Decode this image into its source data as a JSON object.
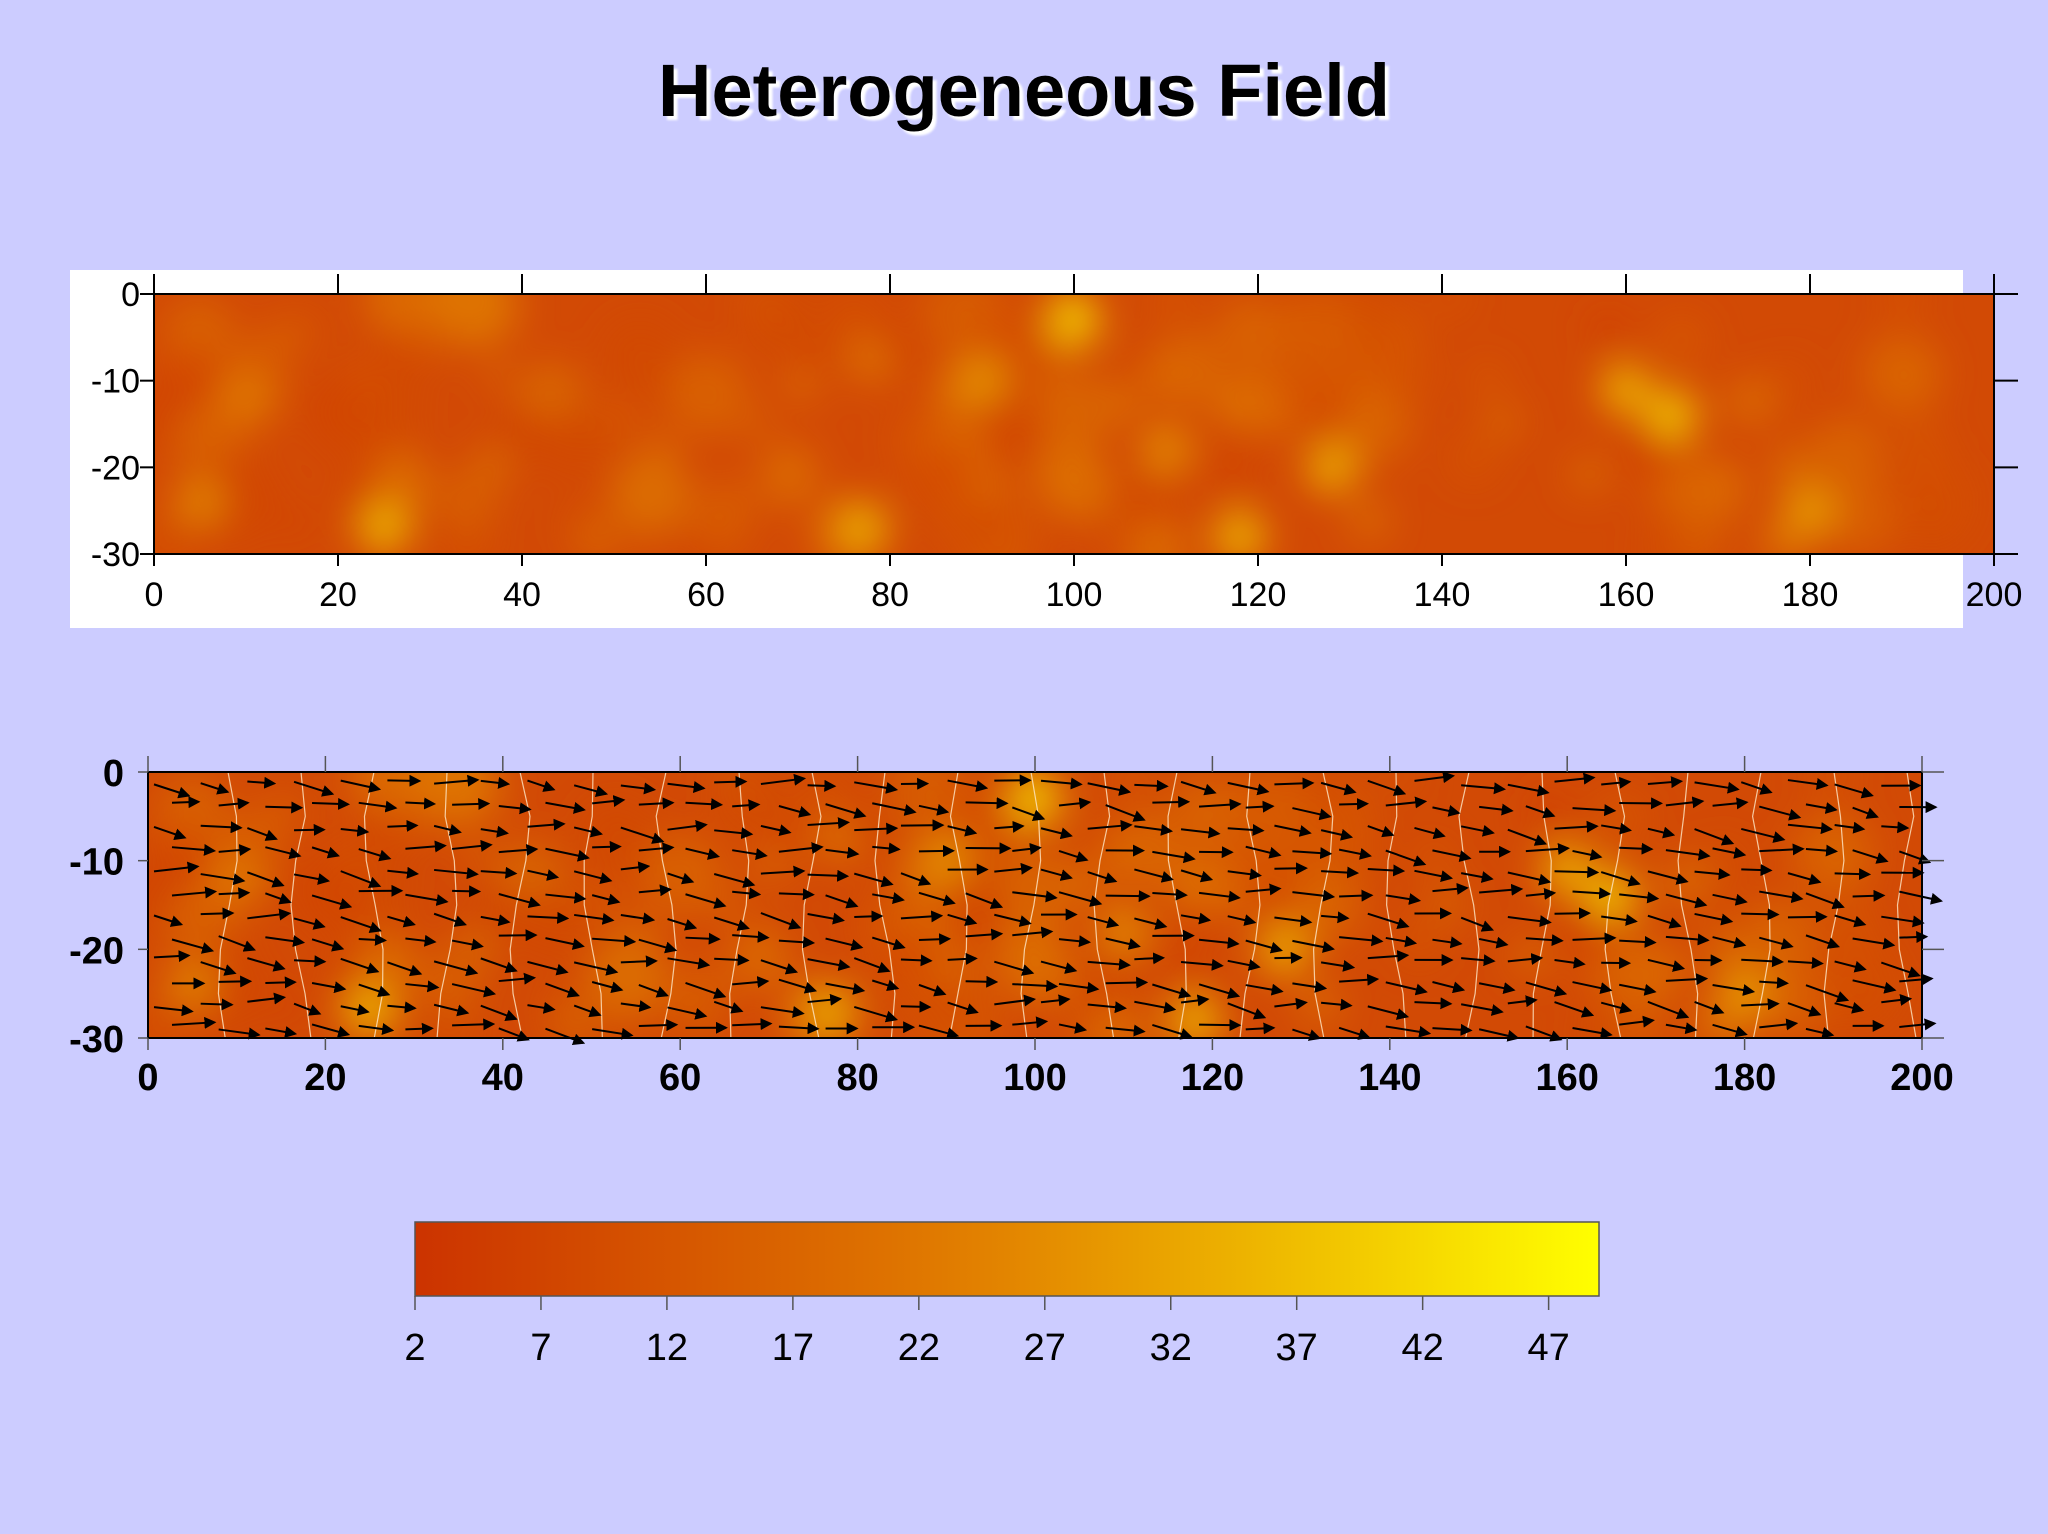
{
  "title": "Heterogeneous Field",
  "colors": {
    "background": "#ccccff",
    "field_low": "#cc3300",
    "field_mid": "#e07a00",
    "field_high": "#ffff00"
  },
  "chart_data": [
    {
      "type": "heatmap",
      "name": "hydraulic-conductivity-field",
      "title": "",
      "xlim": [
        0,
        200
      ],
      "ylim": [
        -30,
        0
      ],
      "x_ticks": [
        0,
        20,
        40,
        60,
        80,
        100,
        120,
        140,
        160,
        180,
        200
      ],
      "y_ticks": [
        0,
        -10,
        -20,
        -30
      ],
      "value_range": [
        2,
        49
      ],
      "highlights": [
        {
          "x": 100,
          "y": -3,
          "value": 40
        },
        {
          "x": 25,
          "y": -27,
          "value": 35
        },
        {
          "x": 77,
          "y": -27,
          "value": 33
        },
        {
          "x": 118,
          "y": -28,
          "value": 35
        },
        {
          "x": 128,
          "y": -20,
          "value": 33
        },
        {
          "x": 160,
          "y": -11,
          "value": 34
        },
        {
          "x": 165,
          "y": -14,
          "value": 38
        },
        {
          "x": 180,
          "y": -25,
          "value": 30
        },
        {
          "x": 5,
          "y": -24,
          "value": 25
        },
        {
          "x": 90,
          "y": -10,
          "value": 28
        },
        {
          "x": 110,
          "y": -18,
          "value": 26
        }
      ],
      "grid": false,
      "legend": "none"
    },
    {
      "type": "heatmap",
      "name": "velocity-field",
      "title": "",
      "overlay": "vector-arrows",
      "xlim": [
        0,
        200
      ],
      "ylim": [
        -30,
        0
      ],
      "x_ticks": [
        0,
        20,
        40,
        60,
        80,
        100,
        120,
        140,
        160,
        180,
        200
      ],
      "y_ticks": [
        0,
        -10,
        -20,
        -30
      ],
      "flow_direction": "left-to-right",
      "grid": false,
      "legend": "none"
    },
    {
      "type": "colorbar",
      "name": "color-scale",
      "range": [
        2,
        49
      ],
      "ticks": [
        2,
        7,
        12,
        17,
        22,
        27,
        32,
        37,
        42,
        47
      ]
    }
  ]
}
